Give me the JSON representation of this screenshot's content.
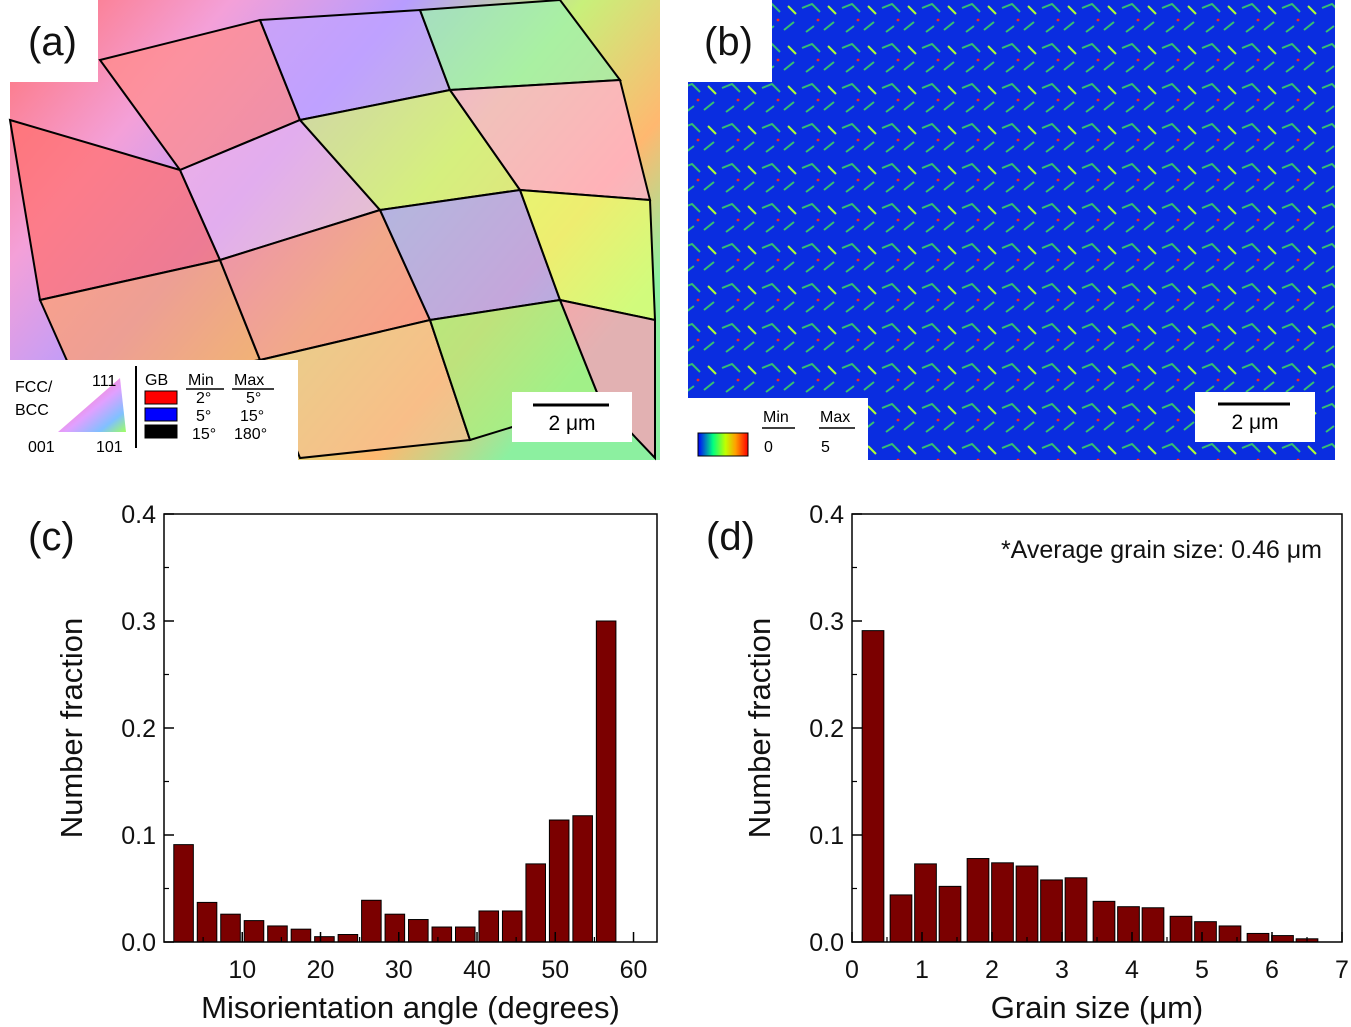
{
  "panels": {
    "a": {
      "label": "(a)"
    },
    "b": {
      "label": "(b)"
    },
    "c": {
      "label": "(c)"
    },
    "d": {
      "label": "(d)"
    }
  },
  "map_a": {
    "scalebar": "2 μm",
    "ipf_legend": {
      "title_line1": "FCC/",
      "title_line2": "BCC",
      "corner_top": "111",
      "corner_left": "001",
      "corner_right": "101"
    },
    "gb_legend": {
      "header": "GB",
      "min_header": "Min",
      "max_header": "Max",
      "rows": [
        {
          "color": "#ff0000",
          "min": "2°",
          "max": "5°"
        },
        {
          "color": "#0000ff",
          "min": "5°",
          "max": "15°"
        },
        {
          "color": "#000000",
          "min": "15°",
          "max": "180°"
        }
      ]
    }
  },
  "map_b": {
    "scalebar": "2 μm",
    "kam_legend": {
      "min_header": "Min",
      "max_header": "Max",
      "min": "0",
      "max": "5"
    }
  },
  "chart_data": [
    {
      "type": "bar",
      "panel": "c",
      "xlabel": "Misorientation angle (degrees)",
      "ylabel": "Number fraction",
      "xlim": [
        0,
        63
      ],
      "ylim": [
        0,
        0.4
      ],
      "xticks": [
        10,
        20,
        30,
        40,
        50,
        60
      ],
      "yticks": [
        0.0,
        0.1,
        0.2,
        0.3,
        0.4
      ],
      "ytick_labels": [
        "0.0",
        "0.1",
        "0.2",
        "0.3",
        "0.4"
      ],
      "bar_width": 2.5,
      "bar_color": "#7b0000",
      "x": [
        2.5,
        5.5,
        8.5,
        11.5,
        14.5,
        17.5,
        20.5,
        23.5,
        26.5,
        29.5,
        32.5,
        35.5,
        38.5,
        41.5,
        44.5,
        47.5,
        50.5,
        53.5,
        56.5,
        59.5
      ],
      "values": [
        0.091,
        0.037,
        0.026,
        0.02,
        0.015,
        0.012,
        0.005,
        0.007,
        0.039,
        0.026,
        0.021,
        0.014,
        0.014,
        0.029,
        0.029,
        0.073,
        0.114,
        0.118,
        0.3,
        0.0
      ]
    },
    {
      "type": "bar",
      "panel": "d",
      "xlabel": "Grain size (μm)",
      "ylabel": "Number fraction",
      "annotation": "*Average grain size: 0.46 μm",
      "xlim": [
        0,
        7
      ],
      "ylim": [
        0,
        0.4
      ],
      "xticks": [
        0,
        1,
        2,
        3,
        4,
        5,
        6,
        7
      ],
      "yticks": [
        0.0,
        0.1,
        0.2,
        0.3,
        0.4
      ],
      "ytick_labels": [
        "0.0",
        "0.1",
        "0.2",
        "0.3",
        "0.4"
      ],
      "bar_width": 0.31,
      "bar_color": "#7b0000",
      "x": [
        0.3,
        0.7,
        1.05,
        1.4,
        1.8,
        2.15,
        2.5,
        2.85,
        3.2,
        3.6,
        3.95,
        4.3,
        4.7,
        5.05,
        5.4,
        5.8,
        6.15,
        6.5,
        6.9
      ],
      "values": [
        0.291,
        0.044,
        0.073,
        0.052,
        0.078,
        0.074,
        0.071,
        0.058,
        0.06,
        0.038,
        0.033,
        0.032,
        0.024,
        0.019,
        0.015,
        0.008,
        0.006,
        0.003,
        0.0
      ]
    }
  ]
}
